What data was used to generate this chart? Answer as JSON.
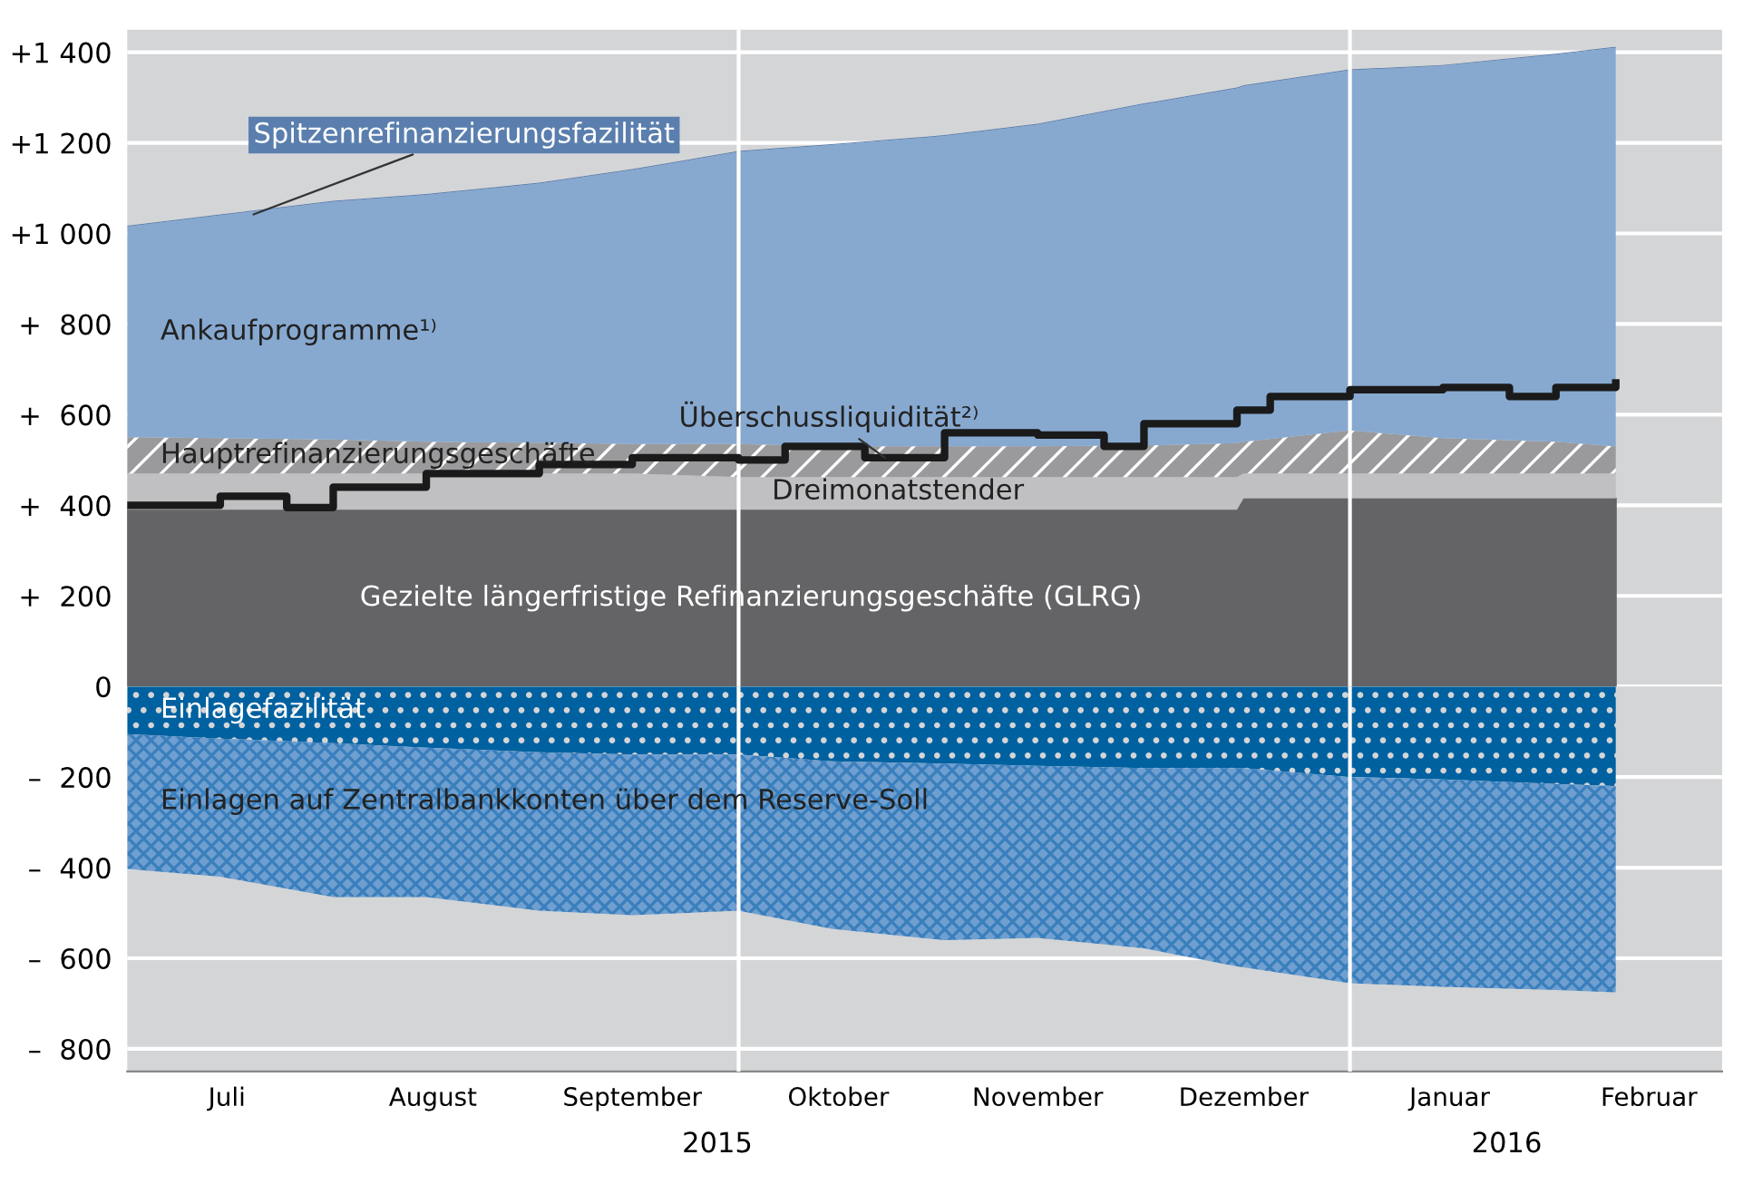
{
  "chart_data": [
    {
      "type": "area",
      "stacked": true,
      "x": [
        "2015-07-01",
        "2015-07-15",
        "2015-08-01",
        "2015-08-15",
        "2015-09-01",
        "2015-09-15",
        "2015-10-01",
        "2015-10-15",
        "2015-11-01",
        "2015-11-15",
        "2015-12-01",
        "2015-12-15",
        "2015-12-16",
        "2016-01-01",
        "2016-01-15",
        "2016-02-01",
        "2016-02-10"
      ],
      "series": [
        {
          "name": "Gezielte längerfristige Refinanzierungsgeschäfte (GLRG)",
          "color": "#646466",
          "values": [
            390,
            390,
            390,
            390,
            390,
            390,
            390,
            390,
            390,
            390,
            390,
            390,
            415,
            415,
            415,
            415,
            415
          ]
        },
        {
          "name": "Dreimonatstender",
          "color": "#c0c0c2",
          "values": [
            80,
            80,
            80,
            80,
            80,
            80,
            72,
            72,
            72,
            72,
            72,
            72,
            55,
            55,
            55,
            55,
            55
          ]
        },
        {
          "name": "Hauptrefinanzierungsgeschäfte",
          "color": "#9a9a9c",
          "values": [
            80,
            78,
            75,
            70,
            68,
            65,
            73,
            68,
            68,
            68,
            70,
            75,
            70,
            95,
            78,
            70,
            60
          ]
        },
        {
          "name": "Ankaufprogramme¹⁾",
          "color": "#87a9d0",
          "values": [
            465,
            492,
            525,
            545,
            572,
            605,
            645,
            665,
            685,
            710,
            753,
            783,
            785,
            795,
            822,
            855,
            880
          ]
        },
        {
          "name": "Spitzenrefinanzierungsfazilität",
          "color": "#5a7fae",
          "values": [
            2,
            2,
            2,
            2,
            2,
            2,
            2,
            2,
            2,
            2,
            2,
            2,
            2,
            2,
            2,
            2,
            2
          ]
        },
        {
          "name": "Überschussliquidität²⁾",
          "type": "step",
          "color": "#1a1a1a",
          "x": [
            "2015-07-01",
            "2015-07-15",
            "2015-07-25",
            "2015-08-01",
            "2015-08-15",
            "2015-09-01",
            "2015-09-15",
            "2015-10-01",
            "2015-10-08",
            "2015-10-20",
            "2015-11-01",
            "2015-11-15",
            "2015-11-25",
            "2015-12-01",
            "2015-12-15",
            "2015-12-20",
            "2016-01-01",
            "2016-01-15",
            "2016-01-25",
            "2016-02-01",
            "2016-02-10"
          ],
          "values": [
            400,
            420,
            395,
            440,
            470,
            490,
            505,
            500,
            530,
            505,
            560,
            555,
            530,
            580,
            610,
            640,
            655,
            660,
            640,
            660,
            670
          ]
        }
      ],
      "xlim": [
        "2015-07-01",
        "2016-02-26"
      ],
      "ylim": [
        0,
        1450
      ],
      "yticks": [
        0,
        {
          "value": 200,
          "label": "+  200"
        },
        {
          "value": 400,
          "label": "+  400"
        },
        {
          "value": 600,
          "label": "+  600"
        },
        {
          "value": 800,
          "label": "+  800"
        },
        {
          "value": 1000,
          "label": "+1 000"
        },
        {
          "value": 1200,
          "label": "+1 200"
        },
        {
          "value": 1400,
          "label": "+1 400"
        }
      ],
      "tick_labels": "y",
      "grid": "y",
      "ref_lines": [
        {
          "axis": "x",
          "value": "2015-10-01",
          "color": "#ffffff"
        },
        {
          "axis": "x",
          "value": "2016-01-01",
          "color": "#ffffff"
        }
      ]
    },
    {
      "type": "area",
      "stacked": true,
      "x": [
        "2015-07-01",
        "2015-07-15",
        "2015-08-01",
        "2015-08-15",
        "2015-09-01",
        "2015-09-15",
        "2015-10-01",
        "2015-10-15",
        "2015-11-01",
        "2015-11-15",
        "2015-12-01",
        "2015-12-15",
        "2015-12-16",
        "2016-01-01",
        "2016-01-15",
        "2016-02-01",
        "2016-02-10"
      ],
      "series": [
        {
          "name": "Einlagefazilität",
          "color": "#0061a0",
          "values": [
            -105,
            -115,
            -125,
            -135,
            -145,
            -150,
            -150,
            -165,
            -170,
            -175,
            -180,
            -180,
            -180,
            -200,
            -205,
            -215,
            -220
          ]
        },
        {
          "name": "Einlagen auf Zentralbankkonten über dem Reserve-Soll",
          "color": "#6f9fd0",
          "values": [
            -298,
            -305,
            -340,
            -330,
            -350,
            -355,
            -345,
            -370,
            -390,
            -380,
            -398,
            -438,
            -440,
            -455,
            -458,
            -455,
            -455
          ]
        }
      ],
      "xlim": [
        "2015-07-01",
        "2016-02-26"
      ],
      "xticks": [
        {
          "value": "2015-07-16",
          "label": "Juli"
        },
        {
          "value": "2015-08-16",
          "label": "August"
        },
        {
          "value": "2015-09-15",
          "label": "September"
        },
        {
          "value": "2015-10-16",
          "label": "Oktober"
        },
        {
          "value": "2015-11-15",
          "label": "November"
        },
        {
          "value": "2015-12-16",
          "label": "Dezember"
        },
        {
          "value": "2016-01-16",
          "label": "Januar"
        },
        {
          "value": "2016-02-15",
          "label": "Februar"
        }
      ],
      "ylim": [
        -850,
        0
      ],
      "yticks": [
        {
          "value": -800,
          "label": "–  800"
        },
        {
          "value": -600,
          "label": "–  600"
        },
        {
          "value": -400,
          "label": "–  400"
        },
        {
          "value": -200,
          "label": "–  200"
        }
      ],
      "grid": "y",
      "ref_lines": [
        {
          "axis": "x",
          "value": "2015-10-01",
          "color": "#ffffff"
        },
        {
          "axis": "x",
          "value": "2016-01-01",
          "color": "#ffffff"
        }
      ],
      "annotations": [
        "2015",
        "2016"
      ]
    }
  ]
}
